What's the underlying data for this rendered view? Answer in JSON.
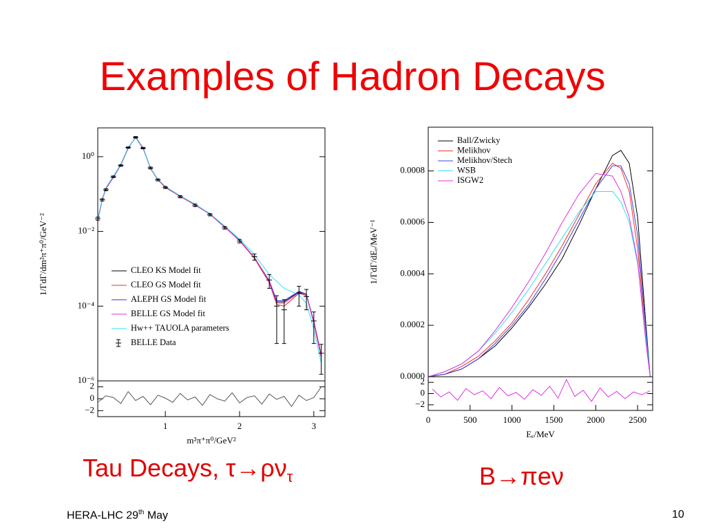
{
  "title": "Examples of Hadron Decays",
  "captions": [
    {
      "text": "Tau Decays, τ→ρν",
      "sub": "τ"
    },
    {
      "text": "B→πeν"
    }
  ],
  "footer": {
    "text": "HERA-LHC 29",
    "sup": "th",
    "rest": " May"
  },
  "page_number": "10",
  "chart_data": [
    {
      "type": "line",
      "ylog": true,
      "ylabel": "1/ΓdΓ/dm²π⁺π⁰/GeV⁻²",
      "xlim": [
        0.09,
        3.15
      ],
      "ylim": [
        1e-06,
        5.9
      ],
      "yticks": [
        {
          "value": 1,
          "label": "10⁰"
        },
        {
          "value": 0.01,
          "label": "10⁻²"
        },
        {
          "value": 0.0001,
          "label": "10⁻⁴"
        },
        {
          "value": 1e-06,
          "label": "10⁻⁶"
        }
      ],
      "legend": "lower left",
      "x": [
        0.09,
        0.15,
        0.2,
        0.3,
        0.4,
        0.5,
        0.6,
        0.7,
        0.8,
        0.9,
        1.0,
        1.2,
        1.4,
        1.6,
        1.8,
        2.0,
        2.2,
        2.4,
        2.5,
        2.6,
        2.8,
        2.9,
        3.0,
        3.1
      ],
      "series": [
        {
          "name": "CLEO KS Model fit",
          "color": "#000000",
          "values": [
            0.02,
            0.072,
            0.14,
            0.28,
            0.6,
            1.7,
            3.3,
            1.7,
            0.49,
            0.24,
            0.155,
            0.087,
            0.052,
            0.029,
            0.013,
            0.0058,
            0.002,
            0.00046,
            0.00013,
            0.00013,
            0.00024,
            0.0002,
            3.6e-05,
            4.4e-06
          ]
        },
        {
          "name": "CLEO GS Model fit",
          "color": "#e03030",
          "values": [
            0.021,
            0.074,
            0.14,
            0.29,
            0.62,
            1.75,
            3.2,
            1.65,
            0.48,
            0.24,
            0.15,
            0.086,
            0.051,
            0.029,
            0.013,
            0.0056,
            0.0019,
            0.00042,
            0.00011,
            0.0001,
            0.00022,
            0.00019,
            4e-05,
            5e-06
          ]
        },
        {
          "name": "ALEPH GS Model fit",
          "color": "#3030e0",
          "values": [
            0.02,
            0.07,
            0.14,
            0.28,
            0.6,
            1.7,
            3.3,
            1.7,
            0.5,
            0.245,
            0.156,
            0.088,
            0.052,
            0.029,
            0.013,
            0.0058,
            0.002,
            0.00048,
            0.00014,
            0.00014,
            0.00025,
            0.00021,
            3.8e-05,
            4.5e-06
          ]
        },
        {
          "name": "BELLE GS Model fit",
          "color": "#e030c0",
          "values": [
            0.02,
            0.071,
            0.14,
            0.28,
            0.61,
            1.72,
            3.25,
            1.68,
            0.49,
            0.24,
            0.155,
            0.087,
            0.052,
            0.029,
            0.013,
            0.0057,
            0.002,
            0.00045,
            0.00012,
            0.00012,
            0.00023,
            0.0002,
            3.5e-05,
            4.2e-06
          ]
        },
        {
          "name": "Hw++ TAUOLA parameters",
          "color": "#30e0f0",
          "values": [
            0.022,
            0.075,
            0.15,
            0.3,
            0.63,
            1.8,
            3.2,
            1.6,
            0.5,
            0.25,
            0.16,
            0.09,
            0.054,
            0.03,
            0.014,
            0.0062,
            0.0024,
            0.0007,
            0.00046,
            0.0003,
            0.0002,
            0.00012,
            2.4e-05,
            3e-06
          ]
        },
        {
          "name": "BELLE Data",
          "color": "#000000",
          "marker": "errorbar",
          "values": [
            0.022,
            0.07,
            0.13,
            0.29,
            0.58,
            1.75,
            3.3,
            1.7,
            0.5,
            0.24,
            0.15,
            0.085,
            0.05,
            0.028,
            0.0125,
            0.0055,
            0.0021,
            0.0005,
            0.0001,
            8e-05,
            0.00022,
            0.00018,
            4e-05,
            5.5e-06
          ],
          "errors": [
            0.002,
            0.005,
            0.008,
            0.015,
            0.03,
            0.08,
            0.15,
            0.08,
            0.03,
            0.015,
            0.01,
            0.006,
            0.004,
            0.002,
            0.001,
            0.0006,
            0.0004,
            0.0002,
            9e-05,
            7e-05,
            0.00012,
            0.0001,
            3e-05,
            4e-06
          ]
        }
      ]
    },
    {
      "type": "line",
      "xlabel": "m²π⁺π⁰/GeV²",
      "xlim": [
        0.09,
        3.15
      ],
      "ylim": [
        -3,
        3
      ],
      "xticks": [
        1,
        2,
        3
      ],
      "yticks": [
        2,
        0,
        {
          "value": -2,
          "label": "−2"
        }
      ],
      "x": [
        0.1,
        0.2,
        0.3,
        0.4,
        0.5,
        0.6,
        0.7,
        0.8,
        0.9,
        1.0,
        1.1,
        1.2,
        1.3,
        1.4,
        1.5,
        1.6,
        1.7,
        1.8,
        1.9,
        2.0,
        2.1,
        2.2,
        2.3,
        2.4,
        2.5,
        2.6,
        2.7,
        2.8,
        2.9,
        3.0,
        3.1
      ],
      "series": [
        {
          "color": "#555555",
          "values": [
            -0.5,
            0.5,
            0.2,
            -0.8,
            1.2,
            -0.3,
            0.4,
            -1.0,
            0.6,
            0.1,
            -0.6,
            0.9,
            -0.2,
            0.3,
            -1.1,
            0.7,
            0.0,
            -0.4,
            1.0,
            -0.7,
            0.2,
            0.5,
            -0.9,
            0.8,
            -0.1,
            0.4,
            -1.3,
            0.6,
            -0.3,
            0.2,
            2.0
          ]
        }
      ]
    },
    {
      "type": "line",
      "ylabel": "1/ΓdΓ/dEₑ/MeV⁻¹",
      "xlim": [
        0,
        2680
      ],
      "ylim": [
        0,
        0.00097
      ],
      "yticks": [
        {
          "value": 0,
          "label": "0.0000"
        },
        {
          "value": 0.0002,
          "label": "0.0002"
        },
        {
          "value": 0.0004,
          "label": "0.0004"
        },
        {
          "value": 0.0006,
          "label": "0.0006"
        },
        {
          "value": 0.0008,
          "label": "0.0008"
        }
      ],
      "legend": "upper left",
      "x": [
        0,
        200,
        400,
        600,
        800,
        1000,
        1200,
        1400,
        1600,
        1800,
        2000,
        2200,
        2300,
        2400,
        2500,
        2600,
        2650
      ],
      "series": [
        {
          "name": "Ball/Zwicky",
          "color": "#000000",
          "values": [
            0,
            1e-05,
            3e-05,
            7e-05,
            0.00012,
            0.00019,
            0.00027,
            0.00036,
            0.00046,
            0.00059,
            0.00073,
            0.00086,
            0.00088,
            0.00083,
            0.00062,
            0.0002,
            0
          ]
        },
        {
          "name": "Melikhov",
          "color": "#f03030",
          "values": [
            0,
            1e-05,
            4e-05,
            8e-05,
            0.00014,
            0.00021,
            0.0003,
            0.0004,
            0.00051,
            0.00063,
            0.00075,
            0.00083,
            0.00081,
            0.00072,
            0.0005,
            0.00015,
            0
          ]
        },
        {
          "name": "Melikhov/Stech",
          "color": "#4040e0",
          "values": [
            0,
            1e-05,
            3e-05,
            7e-05,
            0.00013,
            0.0002,
            0.00028,
            0.00038,
            0.00049,
            0.00061,
            0.00073,
            0.00082,
            0.00082,
            0.00075,
            0.00055,
            0.00018,
            0
          ]
        },
        {
          "name": "WSB",
          "color": "#30e0f0",
          "values": [
            0,
            2e-05,
            5e-05,
            0.0001,
            0.00017,
            0.00025,
            0.00034,
            0.00044,
            0.00054,
            0.00064,
            0.00072,
            0.00072,
            0.00068,
            0.0006,
            0.00044,
            0.00015,
            0
          ]
        },
        {
          "name": "ISGW2",
          "color": "#e030e0",
          "values": [
            0,
            2e-05,
            5e-05,
            0.0001,
            0.00018,
            0.00027,
            0.00037,
            0.00048,
            0.0006,
            0.00071,
            0.00079,
            0.00078,
            0.00072,
            0.00062,
            0.00045,
            0.00013,
            0
          ]
        }
      ]
    },
    {
      "type": "line",
      "xlabel": "Eₑ/MeV",
      "xlim": [
        0,
        2680
      ],
      "ylim": [
        -3,
        3
      ],
      "xticks": [
        0,
        500,
        1000,
        1500,
        2000,
        2500
      ],
      "yticks": [
        2,
        0,
        {
          "value": -2,
          "label": "−2"
        }
      ],
      "x": [
        50,
        150,
        250,
        350,
        450,
        550,
        650,
        750,
        850,
        950,
        1050,
        1150,
        1250,
        1350,
        1450,
        1550,
        1650,
        1750,
        1850,
        1950,
        2050,
        2150,
        2250,
        2350,
        2450,
        2550,
        2650
      ],
      "series": [
        {
          "color": "#e030e0",
          "values": [
            0.8,
            -0.6,
            0.3,
            -1.2,
            0.9,
            -0.2,
            0.5,
            -0.9,
            1.1,
            -0.4,
            0.2,
            -1.0,
            0.7,
            -0.3,
            1.3,
            -0.8,
            2.5,
            -0.5,
            0.6,
            -1.4,
            1.0,
            -0.6,
            0.4,
            -0.9,
            0.3,
            -0.2,
            0.5
          ]
        }
      ]
    }
  ]
}
